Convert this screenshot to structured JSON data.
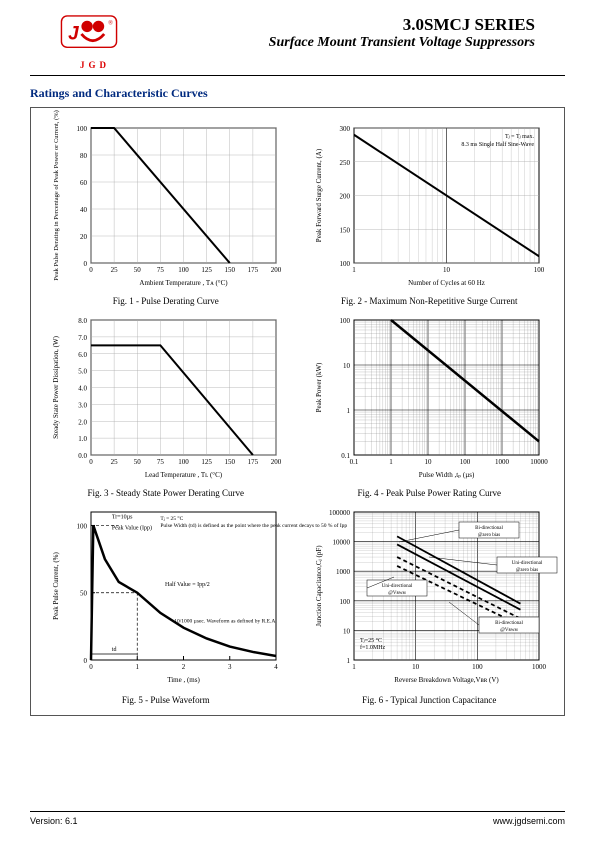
{
  "header": {
    "logo_letters": "JGD",
    "series": "3.0SMCJ SERIES",
    "subtitle": "Surface Mount Transient Voltage Suppressors",
    "logo_color": "#d00000"
  },
  "section_title": "Ratings and Characteristic Curves",
  "section_title_color": "#002a7f",
  "footer": {
    "version": "Version: 6.1",
    "url": "www.jgdsemi.com"
  },
  "fig1": {
    "type": "line",
    "caption": "Fig. 1 - Pulse Derating Curve",
    "xlabel": "Ambient Temperature , Tᴀ (°C)",
    "ylabel": "Peak Pulse Derating in Percentage of Peak Power or Current, (%)",
    "xlim": [
      0,
      200
    ],
    "xtick_step": 25,
    "ylim": [
      0,
      100
    ],
    "ytick_step": 20,
    "line": [
      [
        0,
        100
      ],
      [
        25,
        100
      ],
      [
        150,
        0
      ]
    ],
    "line_color": "#000000",
    "line_width": 2,
    "background_color": "#ffffff",
    "grid_color": "#aaaaaa"
  },
  "fig2": {
    "type": "line-log-x",
    "caption": "Fig. 2 - Maximum Non-Repetitive Surge Current",
    "xlabel": "Number of Cycles at 60 Hz",
    "ylabel": "Peak Forward Surge Current, (A)",
    "note": "Tⱼ = Tⱼ max.\n8.3 ms Single Half Sine-Wave",
    "x_log_decades": [
      1,
      10,
      100
    ],
    "ylim": [
      100,
      300
    ],
    "ytick_step": 50,
    "line": [
      [
        1,
        290
      ],
      [
        100,
        110
      ]
    ],
    "line_color": "#000000",
    "line_width": 2,
    "background_color": "#ffffff",
    "grid_color": "#aaaaaa"
  },
  "fig3": {
    "type": "line",
    "caption": "Fig. 3 - Steady State Power Derating Curve",
    "xlabel": "Lead Temperature , Tʟ (°C)",
    "ylabel": "Steady State Power Dissipation, (W)",
    "xlim": [
      0,
      200
    ],
    "xtick_step": 25,
    "ylim": [
      0,
      8
    ],
    "ytick_step": 1,
    "line": [
      [
        0,
        6.5
      ],
      [
        75,
        6.5
      ],
      [
        175,
        0
      ]
    ],
    "line_color": "#000000",
    "line_width": 2,
    "background_color": "#ffffff",
    "grid_color": "#aaaaaa"
  },
  "fig4": {
    "type": "line-loglog",
    "caption": "Fig. 4 - Peak Pulse Power Rating Curve",
    "xlabel": "Pulse Width ,tₚ (µs)",
    "ylabel": "Peak Power (kW)",
    "x_log_decades": [
      0.1,
      1,
      10,
      100,
      1000,
      10000
    ],
    "y_log_decades": [
      0.1,
      1,
      10,
      100
    ],
    "line": [
      [
        1,
        100
      ],
      [
        10000,
        0.2
      ]
    ],
    "line_color": "#000000",
    "line_width": 2.5,
    "background_color": "#ffffff",
    "grid_color": "#888888"
  },
  "fig5": {
    "type": "waveform",
    "caption": "Fig. 5 - Pulse Waveform",
    "xlabel": "Time , (ms)",
    "ylabel": "Peak Pulse Current, (%)",
    "xlim": [
      0,
      4
    ],
    "xtick_step": 1,
    "ylim": [
      0,
      110
    ],
    "yticks": [
      0,
      50,
      100
    ],
    "notes": {
      "tr": "Tr=10µs",
      "peak": "Peak Value (Ipp)",
      "half": "Half Value = Ipp/2",
      "td": "td",
      "def": "Tⱼ = 25 °C\nPulse Width (td) is defined as the point where the peak current decays to 50 % of Ipp",
      "rea": "10/1000 µsec. Waveform as defined by R.E.A."
    },
    "curve": [
      [
        0,
        0
      ],
      [
        0.05,
        100
      ],
      [
        0.3,
        75
      ],
      [
        0.6,
        58
      ],
      [
        1.0,
        50
      ],
      [
        1.5,
        35
      ],
      [
        2.0,
        24
      ],
      [
        2.5,
        16
      ],
      [
        3.0,
        10
      ],
      [
        3.5,
        6
      ],
      [
        4.0,
        3
      ]
    ],
    "line_color": "#000000",
    "line_width": 2.5,
    "background_color": "#ffffff"
  },
  "fig6": {
    "type": "line-loglog",
    "caption": "Fig. 6 - Typical Junction Capacitance",
    "xlabel": "Reverse Breakdown Voltage,Vʙʀ (V)",
    "ylabel": "Junction Capacitance,Cⱼ (pF)",
    "x_log_decades": [
      1,
      10,
      100,
      1000
    ],
    "y_log_decades": [
      1,
      10,
      100,
      1000,
      10000,
      100000
    ],
    "note_tj": "Tⱼ=25 °C\nf=1.0MHz",
    "series": [
      {
        "label": "Bi-directional @zero bias",
        "style": "solid",
        "points": [
          [
            5,
            15000
          ],
          [
            500,
            80
          ]
        ]
      },
      {
        "label": "Uni-directional @zero bias",
        "style": "solid",
        "points": [
          [
            5,
            8000
          ],
          [
            500,
            50
          ]
        ]
      },
      {
        "label": "Uni-directional @Vʀᴡᴍ",
        "style": "dash",
        "points": [
          [
            5,
            3000
          ],
          [
            500,
            25
          ]
        ]
      },
      {
        "label": "Bi-directional @Vʀᴡᴍ",
        "style": "dash",
        "points": [
          [
            5,
            1500
          ],
          [
            500,
            15
          ]
        ]
      }
    ],
    "line_color": "#000000",
    "line_width": 1.8,
    "background_color": "#ffffff",
    "grid_color": "#888888"
  }
}
